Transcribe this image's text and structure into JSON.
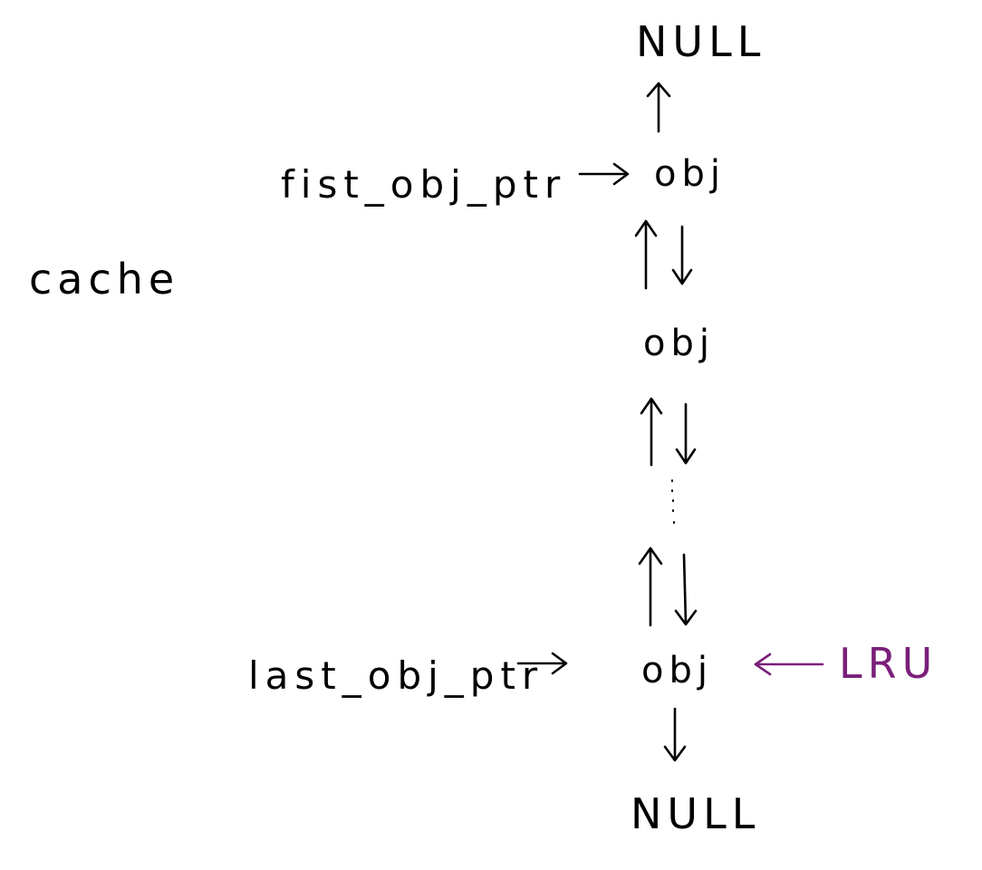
{
  "diagram": {
    "title": "cache",
    "top_terminal": "NULL",
    "bottom_terminal": "NULL",
    "nodes": [
      "obj",
      "obj",
      "obj"
    ],
    "first_pointer": "fist_obj_ptr",
    "last_pointer": "last_obj_ptr",
    "lru_label": "LRU",
    "colors": {
      "ink": "#000000",
      "lru": "#7a1f7a",
      "background": "#ffffff"
    }
  }
}
